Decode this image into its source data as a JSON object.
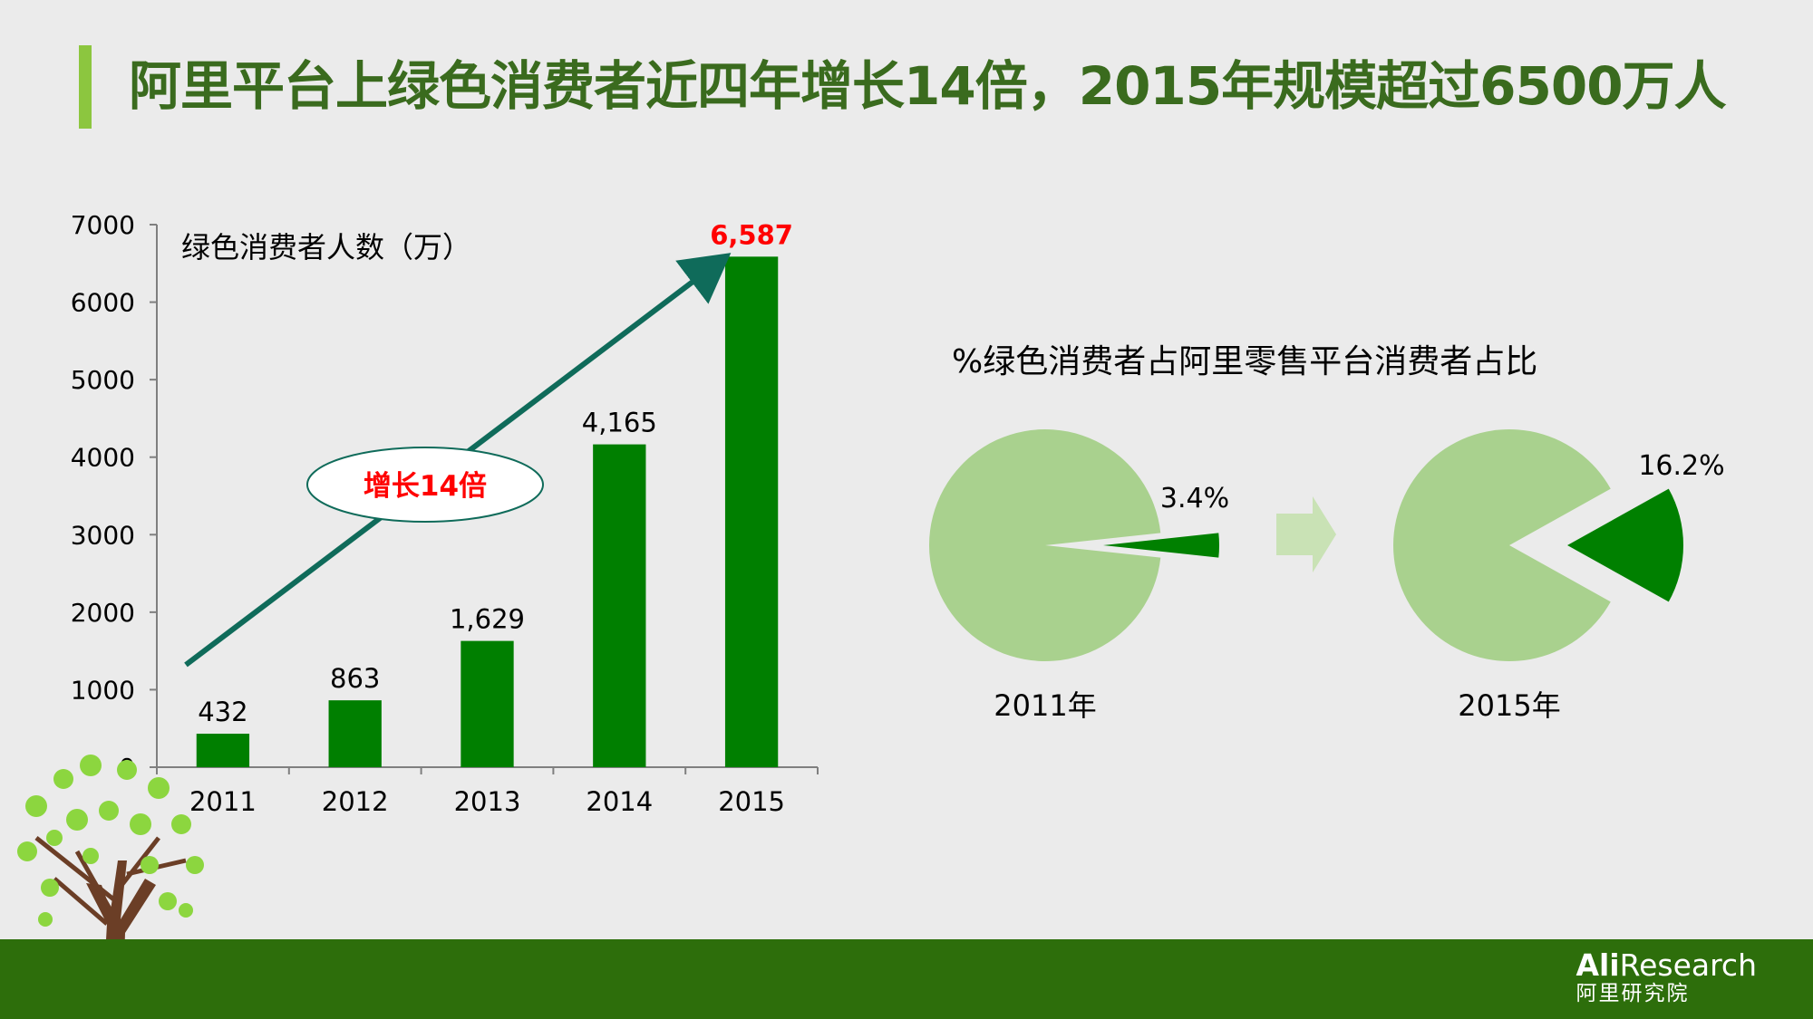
{
  "header": {
    "title": "阿里平台上绿色消费者近四年增长14倍，2015年规模超过6500万人"
  },
  "chart_data": [
    {
      "type": "bar",
      "ylabel": "绿色消费者人数（万）",
      "categories": [
        "2011",
        "2012",
        "2013",
        "2014",
        "2015"
      ],
      "values": [
        432,
        863,
        1629,
        4165,
        6587
      ],
      "value_labels": [
        "432",
        "863",
        "1,629",
        "4,165",
        "6,587"
      ],
      "ylim": [
        0,
        7000
      ],
      "yticks": [
        0,
        1000,
        2000,
        3000,
        4000,
        5000,
        6000,
        7000
      ],
      "grid": false,
      "annotation": "增长14倍",
      "colors": {
        "bar": "#007f00",
        "highlight_label": "#ff0000",
        "arrow": "#0f6b5a"
      }
    },
    {
      "type": "pie",
      "title": "%绿色消费者占阿里零售平台消费者占比",
      "charts": [
        {
          "label": "2011年",
          "value": 3.4,
          "value_label": "3.4%"
        },
        {
          "label": "2015年",
          "value": 16.2,
          "value_label": "16.2%"
        }
      ],
      "colors": {
        "rest": "#a9d18e",
        "highlight": "#008000",
        "arrow": "#c9e2b5"
      }
    }
  ],
  "brand": {
    "name_bold": "Ali",
    "name_rest": "Research",
    "name_cn": "阿里研究院"
  }
}
